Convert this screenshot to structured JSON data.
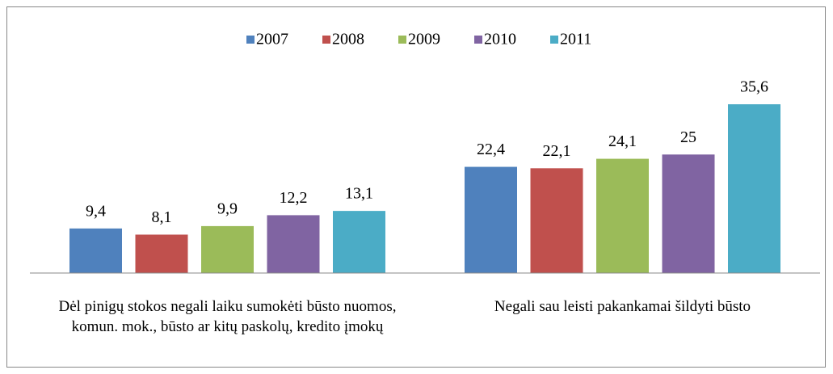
{
  "chart_data": {
    "type": "bar",
    "categories": [
      "Dėl pinigų stokos negali laiku sumokėti būsto nuomos, komun. mok., būsto ar kitų paskolų, kredito įmokų",
      "Negali sau leisti pakankamai šildyti būsto"
    ],
    "series": [
      {
        "name": "2007",
        "color": "#4f81bd",
        "values": [
          9.4,
          22.4
        ],
        "value_labels": [
          "9,4",
          "22,4"
        ]
      },
      {
        "name": "2008",
        "color": "#c0504d",
        "values": [
          8.1,
          22.1
        ],
        "value_labels": [
          "8,1",
          "22,1"
        ]
      },
      {
        "name": "2009",
        "color": "#9bbb59",
        "values": [
          9.9,
          24.1
        ],
        "value_labels": [
          "9,9",
          "24,1"
        ]
      },
      {
        "name": "2010",
        "color": "#8064a2",
        "values": [
          12.2,
          25
        ],
        "value_labels": [
          "12,2",
          "25"
        ]
      },
      {
        "name": "2011",
        "color": "#4bacc6",
        "values": [
          13.1,
          35.6
        ],
        "value_labels": [
          "13,1",
          "35,6"
        ]
      }
    ],
    "ylim": [
      0,
      38
    ],
    "legend": "top"
  }
}
